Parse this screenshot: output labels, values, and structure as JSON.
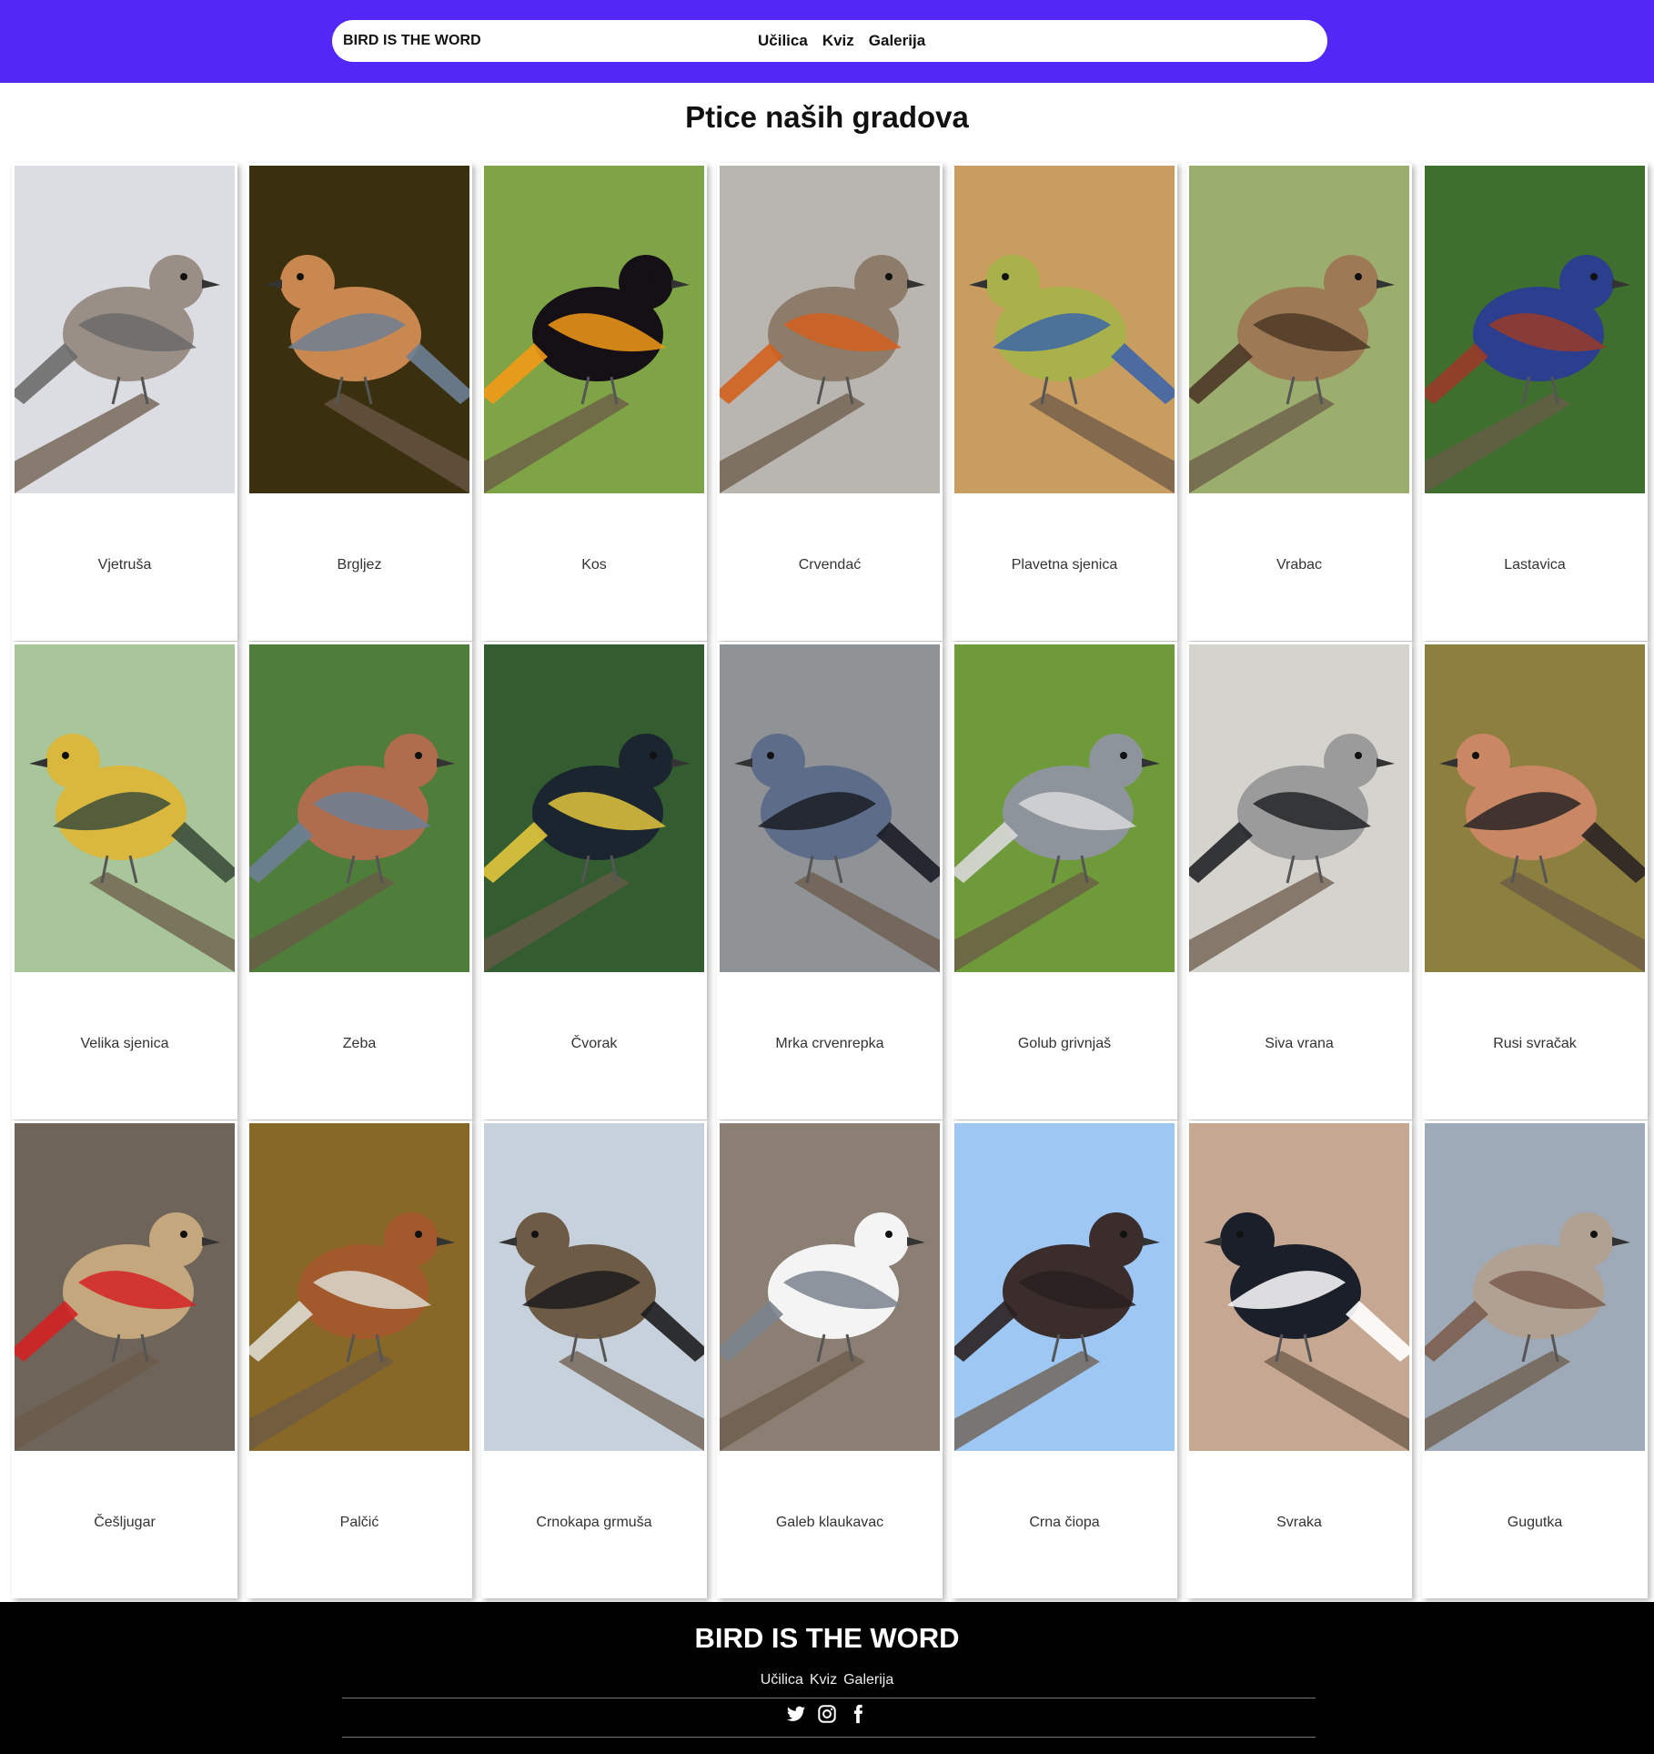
{
  "header": {
    "brand": "BIRD IS THE WORD",
    "nav": [
      "Učilica",
      "Kviz",
      "Galerija"
    ]
  },
  "page": {
    "title": "Ptice naših gradova"
  },
  "birds": [
    {
      "name": "Vjetruša",
      "bg": "#dcdde2",
      "body": "#9a8f86",
      "accent": "#6b6b6b"
    },
    {
      "name": "Brgljez",
      "bg": "#3a2f0e",
      "body": "#c9884f",
      "accent": "#6e7f93"
    },
    {
      "name": "Kos",
      "bg": "#7ea446",
      "body": "#141016",
      "accent": "#f29a16"
    },
    {
      "name": "Crvendać",
      "bg": "#b9b6b1",
      "body": "#8d7c69",
      "accent": "#d2601e"
    },
    {
      "name": "Plavetna sjenica",
      "bg": "#c99c5f",
      "body": "#a9b24a",
      "accent": "#3d66a8"
    },
    {
      "name": "Vrabac",
      "bg": "#9cae6e",
      "body": "#9d7a55",
      "accent": "#4e3926"
    },
    {
      "name": "Lastavica",
      "bg": "#3f6f2e",
      "body": "#2b3f8e",
      "accent": "#9a3b28"
    },
    {
      "name": "Velika sjenica",
      "bg": "#a9c59a",
      "body": "#d9b83d",
      "accent": "#3c4e3a"
    },
    {
      "name": "Zeba",
      "bg": "#4f7d3a",
      "body": "#b06d4e",
      "accent": "#6c7f95"
    },
    {
      "name": "Čvorak",
      "bg": "#335c31",
      "body": "#1b2530",
      "accent": "#e2c53c"
    },
    {
      "name": "Mrka crvenrepka",
      "bg": "#8f9396",
      "body": "#5d6c88",
      "accent": "#1a1d25"
    },
    {
      "name": "Golub grivnjaš",
      "bg": "#6f9a3a",
      "body": "#8e949b",
      "accent": "#d8d8d8"
    },
    {
      "name": "Siva vrana",
      "bg": "#d5d3cd",
      "body": "#9b9b9b",
      "accent": "#222426"
    },
    {
      "name": "Rusi svračak",
      "bg": "#8d7f3e",
      "body": "#c98764",
      "accent": "#292523"
    },
    {
      "name": "Češljugar",
      "bg": "#6e6459",
      "body": "#c5a77d",
      "accent": "#d22222"
    },
    {
      "name": "Palčić",
      "bg": "#876827",
      "body": "#a2592c",
      "accent": "#dedad1"
    },
    {
      "name": "Crnokapa grmuša",
      "bg": "#c6d1db",
      "body": "#6d5b46",
      "accent": "#1c1c1c"
    },
    {
      "name": "Galeb klaukavac",
      "bg": "#8a7f72",
      "body": "#f4f4f4",
      "accent": "#7a838d"
    },
    {
      "name": "Crna čiopa",
      "bg": "#9ec7f4",
      "body": "#3a2d2c",
      "accent": "#2a2020"
    },
    {
      "name": "Svraka",
      "bg": "#c6a892",
      "body": "#1b1f29",
      "accent": "#ffffff"
    },
    {
      "name": "Gugutka",
      "bg": "#9eaab7",
      "body": "#b0a193",
      "accent": "#7b5e4f"
    }
  ],
  "footer": {
    "brand": "BIRD IS THE WORD",
    "nav": [
      "Učilica",
      "Kviz",
      "Galerija"
    ],
    "social": [
      "twitter-icon",
      "instagram-icon",
      "facebook-icon"
    ]
  }
}
